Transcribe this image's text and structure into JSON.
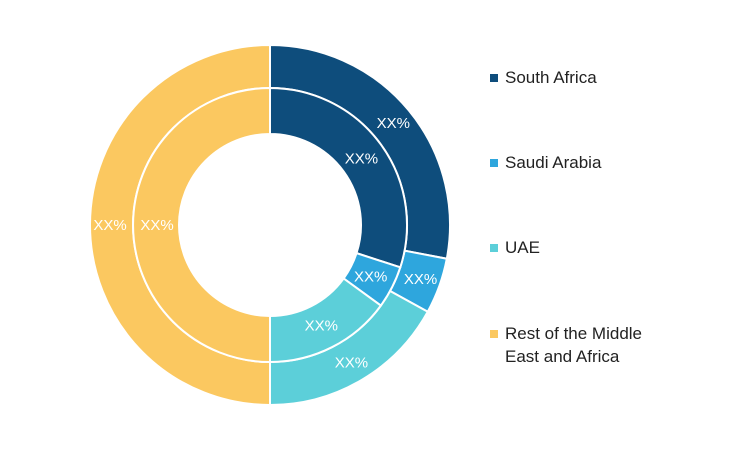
{
  "chart_data": {
    "type": "pie",
    "variant": "double-ring-donut",
    "title": "",
    "legend_position": "right",
    "categories": [
      "South Africa",
      "Saudi Arabia",
      "UAE",
      "Rest of the Middle East and Africa"
    ],
    "colors": [
      "#0e4d7c",
      "#2ea6dd",
      "#5ccfd9",
      "#fbc860"
    ],
    "series": [
      {
        "ring": "outer",
        "values": [
          28,
          5,
          17,
          50
        ],
        "labels": [
          "XX%",
          "XX%",
          "XX%",
          "XX%"
        ]
      },
      {
        "ring": "inner",
        "values": [
          30,
          5,
          15,
          50
        ],
        "labels": [
          "XX%",
          "XX%",
          "XX%",
          "XX%"
        ]
      }
    ]
  }
}
